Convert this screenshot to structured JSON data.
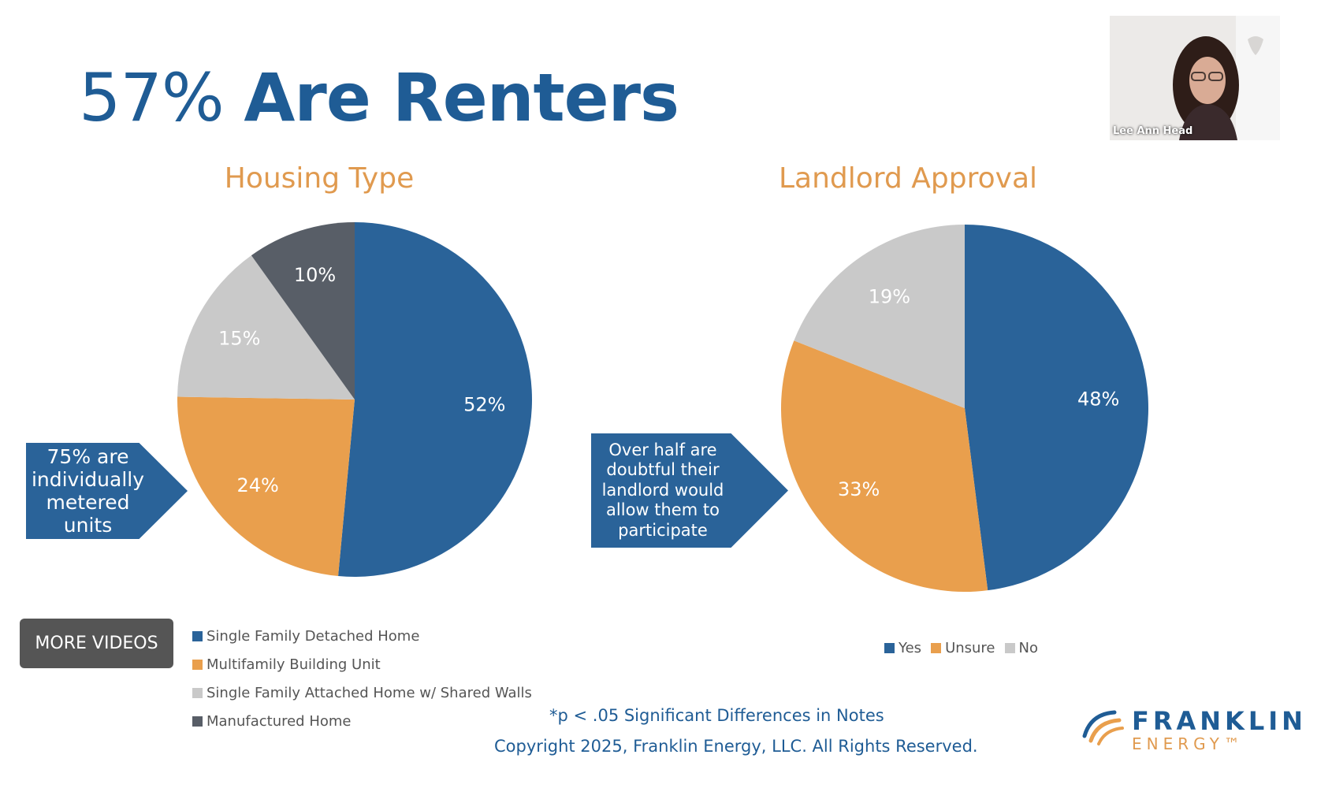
{
  "slide": {
    "title_number": "57%",
    "title_text": "Are Renters",
    "footnote": "*p < .05 Significant Differences in Notes",
    "copyright": "Copyright 2025, Franklin Energy, LLC. All Rights Reserved."
  },
  "more_videos_label": "MORE VIDEOS",
  "video": {
    "speaker_name": "Lee Ann Head"
  },
  "logo": {
    "name": "FRANKLIN",
    "subtitle": "ENERGY™"
  },
  "callouts": {
    "left": "75% are individually metered units",
    "right": "Over half are doubtful their landlord would allow them to participate"
  },
  "colors": {
    "blue": "#2a6399",
    "orange": "#e99f4d",
    "light_gray": "#c9c9c9",
    "dark_gray": "#585e67",
    "title_blue": "#1f5c95",
    "chart_title_orange": "#e09a4f"
  },
  "chart_data": [
    {
      "type": "pie",
      "title": "Housing Type",
      "categories": [
        "Single Family Detached Home",
        "Multifamily Building Unit",
        "Single Family Attached Home w/ Shared Walls",
        "Manufactured Home"
      ],
      "values": [
        52,
        24,
        15,
        10
      ],
      "labels": [
        "52%",
        "24%",
        "15%",
        "10%"
      ],
      "colors": [
        "#2a6399",
        "#e99f4d",
        "#c9c9c9",
        "#585e67"
      ],
      "legend_position": "bottom-left"
    },
    {
      "type": "pie",
      "title": "Landlord Approval",
      "categories": [
        "Yes",
        "Unsure",
        "No"
      ],
      "values": [
        48,
        33,
        19
      ],
      "labels": [
        "48%",
        "33%",
        "19%"
      ],
      "colors": [
        "#2a6399",
        "#e99f4d",
        "#c9c9c9"
      ],
      "legend_position": "bottom"
    }
  ]
}
